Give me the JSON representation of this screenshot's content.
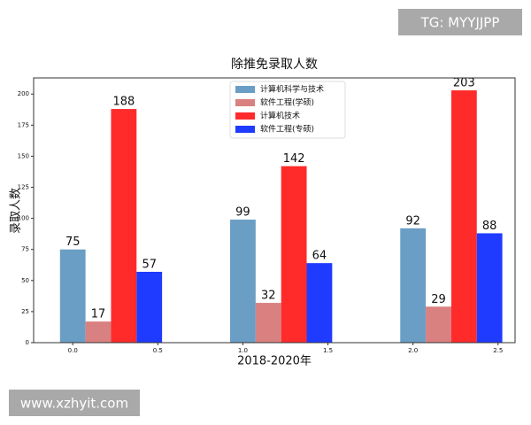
{
  "chart_data": {
    "type": "bar",
    "title": "除推免录取人数",
    "x_label": "2018-2020年",
    "y_label": "录取人数",
    "x": [
      0,
      1,
      2
    ],
    "series": [
      {
        "name": "计算机科学与技术",
        "color": "#6a9ec5",
        "values": [
          75,
          99,
          92
        ]
      },
      {
        "name": "软件工程(学硕)",
        "color": "#d98080",
        "values": [
          17,
          32,
          29
        ]
      },
      {
        "name": "计算机技术",
        "color": "#ff2b2b",
        "values": [
          188,
          142,
          203
        ]
      },
      {
        "name": "软件工程(专硕)",
        "color": "#1f3bff",
        "values": [
          57,
          64,
          88
        ]
      }
    ],
    "xlim": [
      -0.23,
      2.6
    ],
    "xticks": [
      {
        "value": 0,
        "label": "0.0"
      },
      0.5,
      {
        "value": 1,
        "label": "1.0"
      },
      1.5,
      {
        "value": 2,
        "label": "2.0"
      },
      2.5
    ],
    "ylim": [
      0,
      213
    ],
    "yticks": [
      0,
      25,
      50,
      75,
      100,
      125,
      150,
      175,
      200
    ],
    "legend": "upper-center"
  },
  "watermarks": [
    "TG: MYYJJPP",
    "www.xzhyit.com"
  ]
}
